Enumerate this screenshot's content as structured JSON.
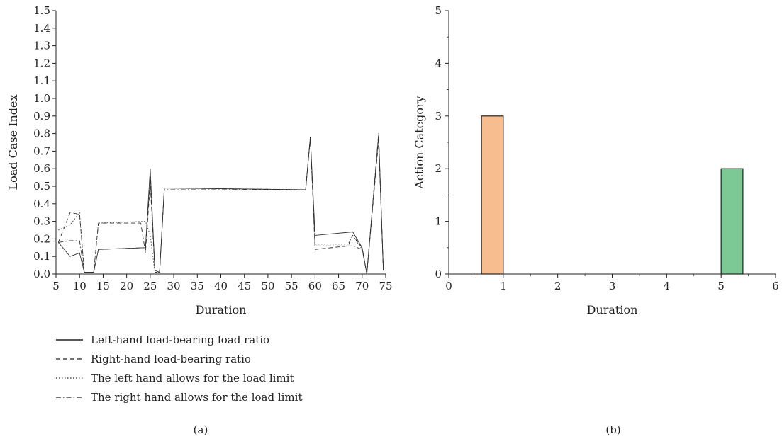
{
  "chart_data": [
    {
      "type": "line",
      "panel_label": "(a)",
      "xlabel": "Duration",
      "ylabel": "Load Case Index",
      "xlim": [
        5,
        75
      ],
      "ylim": [
        0,
        1.5
      ],
      "x_ticks": [
        "5",
        "10",
        "15",
        "20",
        "25",
        "30",
        "35",
        "40",
        "45",
        "50",
        "55",
        "60",
        "65",
        "70",
        "75"
      ],
      "y_ticks": [
        "0.0",
        "0.1",
        "0.2",
        "0.3",
        "0.4",
        "0.5",
        "0.6",
        "0.7",
        "0.8",
        "0.9",
        "1.0",
        "1.1",
        "1.2",
        "1.3",
        "1.4",
        "1.5"
      ],
      "grid": false,
      "legend_position": "bottom",
      "series": [
        {
          "name": "Left-hand load-bearing load ratio",
          "style": "solid",
          "x": [
            5.5,
            8,
            10,
            11,
            13,
            14,
            24,
            25,
            26,
            27,
            28,
            58,
            59,
            60,
            68,
            70,
            71,
            73.5,
            74.5
          ],
          "y": [
            0.18,
            0.1,
            0.12,
            0.01,
            0.01,
            0.14,
            0.15,
            0.6,
            0.02,
            0.01,
            0.49,
            0.48,
            0.78,
            0.22,
            0.24,
            0.15,
            0.0,
            0.79,
            0.02
          ]
        },
        {
          "name": "Right-hand load-bearing ratio",
          "style": "dashed",
          "x": [
            5.5,
            8,
            10,
            11,
            13,
            14,
            23,
            24,
            25,
            26,
            27,
            28,
            58,
            59,
            60,
            67,
            68,
            70,
            71,
            73.5,
            74.5
          ],
          "y": [
            0.18,
            0.35,
            0.34,
            0.01,
            0.01,
            0.29,
            0.29,
            0.12,
            0.52,
            0.01,
            0.01,
            0.49,
            0.48,
            0.78,
            0.14,
            0.16,
            0.22,
            0.15,
            0.0,
            0.76,
            0.02
          ]
        },
        {
          "name": "The left hand allows for the load limit",
          "style": "dotted",
          "x": [
            5.5,
            8,
            10,
            11,
            13,
            14,
            24,
            25,
            26,
            27,
            28,
            58,
            59,
            60,
            67,
            68,
            70,
            71,
            73.5,
            74.5
          ],
          "y": [
            0.25,
            0.28,
            0.35,
            0.01,
            0.01,
            0.29,
            0.3,
            0.22,
            0.01,
            0.01,
            0.49,
            0.49,
            0.77,
            0.17,
            0.17,
            0.22,
            0.14,
            0.01,
            0.78,
            0.02
          ]
        },
        {
          "name": "The right hand allows for the load limit",
          "style": "dashdot",
          "x": [
            5.5,
            8,
            10,
            11,
            13,
            14,
            24,
            25,
            26,
            27,
            28,
            58,
            59,
            60,
            68,
            70,
            71,
            73.5,
            74.5
          ],
          "y": [
            0.18,
            0.19,
            0.19,
            0.01,
            0.01,
            0.14,
            0.15,
            0.55,
            0.02,
            0.01,
            0.48,
            0.48,
            0.78,
            0.16,
            0.16,
            0.14,
            0.0,
            0.8,
            0.02
          ]
        }
      ]
    },
    {
      "type": "bar",
      "panel_label": "(b)",
      "xlabel": "Duration",
      "ylabel": "Action Category",
      "xlim": [
        0,
        6
      ],
      "ylim": [
        0,
        5
      ],
      "x_ticks": [
        "0",
        "1",
        "2",
        "3",
        "4",
        "5",
        "6"
      ],
      "y_ticks": [
        "0",
        "1",
        "2",
        "3",
        "4",
        "5"
      ],
      "grid": false,
      "bars": [
        {
          "x_start": 0.6,
          "x_end": 1.0,
          "value": 3,
          "color": "#f8bd8f"
        },
        {
          "x_start": 5.0,
          "x_end": 5.4,
          "value": 2,
          "color": "#7cc995"
        }
      ]
    }
  ]
}
